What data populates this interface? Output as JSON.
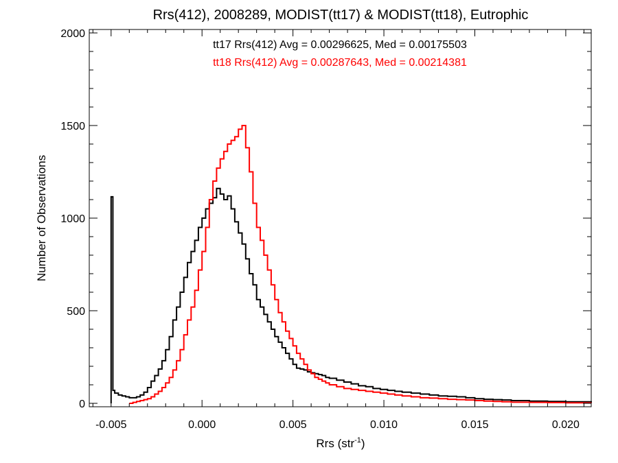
{
  "chart_data": {
    "type": "line",
    "title": "Rrs(412), 2008289, MODIST(tt17) & MODIST(tt18), Eutrophic",
    "xlabel_main": "Rrs (str",
    "xlabel_sup": "-1",
    "xlabel_close": ")",
    "ylabel": "Number of Observations",
    "xlim": [
      -0.0062,
      0.0214
    ],
    "ylim": [
      0,
      2000
    ],
    "x_ticks": [
      -0.005,
      0.0,
      0.005,
      0.01,
      0.015,
      0.02
    ],
    "x_tick_labels": [
      "-0.005",
      "0.000",
      "0.005",
      "0.010",
      "0.015",
      "0.020"
    ],
    "y_ticks": [
      0,
      500,
      1000,
      1500,
      2000
    ],
    "y_tick_labels": [
      "0",
      "500",
      "1000",
      "1500",
      "2000"
    ],
    "grid": false,
    "annotations": [
      {
        "text": "tt17 Rrs(412) Avg = 0.00296625, Med = 0.00175503",
        "color": "#000000"
      },
      {
        "text": "tt18 Rrs(412) Avg = 0.00287643, Med = 0.00214381",
        "color": "#ff0000"
      }
    ],
    "series": [
      {
        "color": "#000000",
        "x": [
          -0.005,
          -0.0049,
          -0.0048,
          -0.0046,
          -0.0044,
          -0.0042,
          -0.004,
          -0.0038,
          -0.0036,
          -0.0034,
          -0.0032,
          -0.003,
          -0.0028,
          -0.0026,
          -0.0024,
          -0.0022,
          -0.002,
          -0.0018,
          -0.0016,
          -0.0014,
          -0.0012,
          -0.001,
          -0.0008,
          -0.0006,
          -0.0004,
          -0.0002,
          0.0,
          0.0002,
          0.0004,
          0.0006,
          0.0008,
          0.001,
          0.0012,
          0.0014,
          0.0016,
          0.0018,
          0.002,
          0.0022,
          0.0024,
          0.0026,
          0.0028,
          0.003,
          0.0032,
          0.0034,
          0.0036,
          0.0038,
          0.004,
          0.0042,
          0.0044,
          0.0046,
          0.0048,
          0.005,
          0.0052,
          0.0054,
          0.0056,
          0.0058,
          0.006,
          0.0062,
          0.0064,
          0.0066,
          0.0068,
          0.007,
          0.0074,
          0.0078,
          0.0082,
          0.0086,
          0.009,
          0.0094,
          0.0098,
          0.0102,
          0.0106,
          0.011,
          0.0115,
          0.012,
          0.0125,
          0.013,
          0.0135,
          0.014,
          0.0145,
          0.015,
          0.0155,
          0.016,
          0.0165,
          0.017,
          0.018,
          0.019,
          0.02,
          0.0214
        ],
        "y": [
          1115,
          70,
          55,
          45,
          40,
          35,
          30,
          30,
          35,
          45,
          60,
          85,
          120,
          150,
          185,
          230,
          290,
          360,
          450,
          520,
          600,
          680,
          760,
          820,
          880,
          950,
          1000,
          1050,
          1080,
          1110,
          1160,
          1130,
          1100,
          1120,
          1050,
          980,
          920,
          860,
          780,
          700,
          640,
          560,
          520,
          480,
          440,
          400,
          360,
          330,
          300,
          270,
          240,
          210,
          190,
          185,
          180,
          170,
          165,
          160,
          155,
          150,
          140,
          135,
          125,
          115,
          105,
          95,
          90,
          80,
          75,
          70,
          65,
          60,
          55,
          50,
          45,
          40,
          38,
          35,
          30,
          25,
          22,
          20,
          18,
          15,
          12,
          10,
          8,
          6
        ]
      },
      {
        "color": "#ff0000",
        "x": [
          -0.004,
          -0.0038,
          -0.0036,
          -0.0034,
          -0.0032,
          -0.003,
          -0.0028,
          -0.0026,
          -0.0024,
          -0.0022,
          -0.002,
          -0.0018,
          -0.0016,
          -0.0014,
          -0.0012,
          -0.001,
          -0.0008,
          -0.0006,
          -0.0004,
          -0.0002,
          0.0,
          0.0002,
          0.0004,
          0.0006,
          0.0008,
          0.001,
          0.0012,
          0.0014,
          0.0016,
          0.0018,
          0.002,
          0.0022,
          0.0024,
          0.0026,
          0.0028,
          0.003,
          0.0032,
          0.0034,
          0.0036,
          0.0038,
          0.004,
          0.0042,
          0.0044,
          0.0046,
          0.0048,
          0.005,
          0.0052,
          0.0054,
          0.0056,
          0.0058,
          0.006,
          0.0062,
          0.0064,
          0.0066,
          0.0068,
          0.007,
          0.0074,
          0.0078,
          0.0082,
          0.0086,
          0.009,
          0.0094,
          0.0098,
          0.0102,
          0.0106,
          0.011,
          0.0115,
          0.012,
          0.0125,
          0.013,
          0.0135,
          0.014,
          0.0145,
          0.015,
          0.0155,
          0.016,
          0.0165,
          0.017,
          0.018,
          0.019,
          0.02,
          0.0214
        ],
        "y": [
          0,
          5,
          10,
          15,
          20,
          25,
          35,
          50,
          65,
          85,
          110,
          140,
          180,
          230,
          290,
          370,
          450,
          520,
          610,
          720,
          820,
          950,
          1100,
          1200,
          1270,
          1320,
          1360,
          1400,
          1420,
          1440,
          1480,
          1500,
          1380,
          1250,
          1080,
          950,
          880,
          800,
          720,
          640,
          560,
          490,
          440,
          390,
          350,
          310,
          270,
          240,
          210,
          180,
          160,
          140,
          130,
          120,
          110,
          100,
          90,
          80,
          75,
          70,
          65,
          60,
          55,
          50,
          45,
          40,
          35,
          30,
          28,
          25,
          22,
          20,
          18,
          15,
          12,
          10,
          8,
          6,
          5,
          4,
          3,
          2
        ]
      }
    ]
  }
}
